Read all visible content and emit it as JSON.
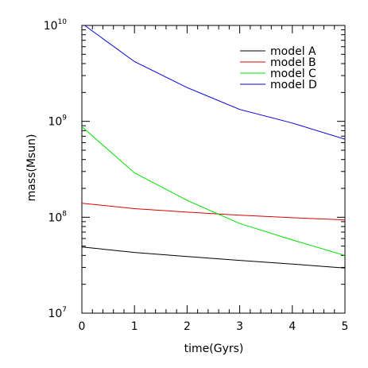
{
  "chart_data": {
    "type": "line",
    "xlabel": "time(Gyrs)",
    "ylabel": "mass(Msun)",
    "xlim": [
      0,
      5
    ],
    "ylim": [
      10000000,
      10000000000
    ],
    "yscale": "log",
    "x_ticks": [
      0,
      1,
      2,
      3,
      4,
      5
    ],
    "y_ticks": [
      {
        "value": 10000000,
        "base": "10",
        "exp": "7"
      },
      {
        "value": 100000000,
        "base": "10",
        "exp": "8"
      },
      {
        "value": 1000000000,
        "base": "10",
        "exp": "9"
      },
      {
        "value": 10000000000,
        "base": "10",
        "exp": "10"
      }
    ],
    "legend": "top-right",
    "grid": false,
    "series": [
      {
        "name": "model A",
        "color": "#000000",
        "x": [
          0,
          1,
          2,
          3,
          4,
          5
        ],
        "y": [
          49000000,
          43000000,
          39000000,
          35500000,
          32500000,
          29500000
        ]
      },
      {
        "name": "model B",
        "color": "#e00000",
        "x": [
          0,
          1,
          2,
          3,
          4,
          5
        ],
        "y": [
          140000000,
          123000000,
          113000000,
          105000000,
          99000000,
          94000000
        ]
      },
      {
        "name": "model C",
        "color": "#00e000",
        "x": [
          0,
          1,
          2,
          3,
          4,
          5
        ],
        "y": [
          880000000,
          290000000,
          150000000,
          86000000,
          58000000,
          40000000
        ]
      },
      {
        "name": "model D",
        "color": "#0000e0",
        "x": [
          0,
          1,
          2,
          3,
          4,
          5
        ],
        "y": [
          10500000000,
          4200000000,
          2250000000,
          1330000000,
          960000000,
          650000000
        ]
      }
    ]
  }
}
